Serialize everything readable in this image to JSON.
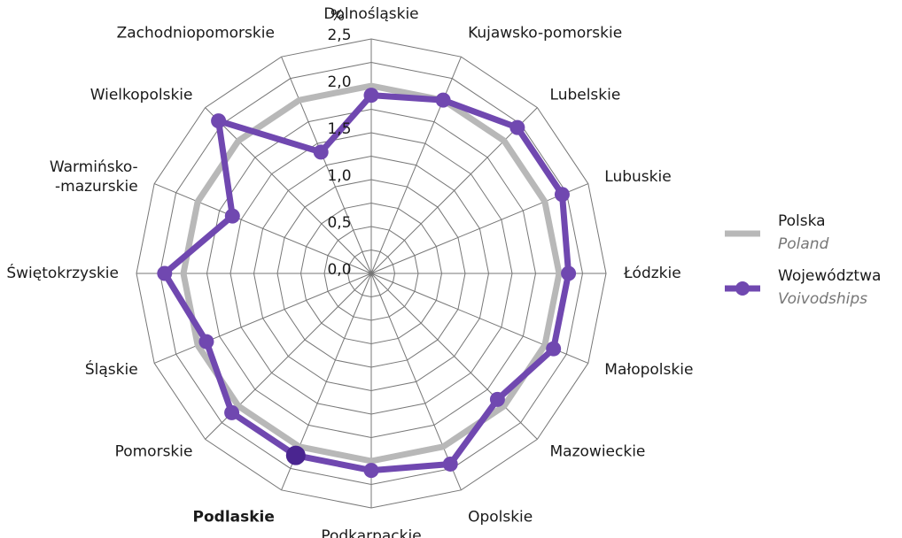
{
  "chart_data": {
    "type": "radar",
    "unit": "%",
    "categories": [
      "Dolnośląskie",
      "Kujawsko-pomorskie",
      "Lubelskie",
      "Lubuskie",
      "Łódzkie",
      "Małopolskie",
      "Mazowieckie",
      "Opolskie",
      "Podkarpackie",
      "Podlaskie",
      "Pomorskie",
      "Śląskie",
      "Świętokrzyskie",
      "Warmińsko-\n-mazurskie",
      "Wielkopolskie",
      "Zachodniopomorskie"
    ],
    "highlight": "Podlaskie",
    "highlight_color": "#4a2590",
    "ylim": [
      0,
      2.5
    ],
    "yticks": [
      {
        "value": 0,
        "label": "0,0"
      },
      {
        "value": 0.5,
        "label": "0,5"
      },
      {
        "value": 1,
        "label": "1,0"
      },
      {
        "value": 1.5,
        "label": "1,5"
      },
      {
        "value": 2,
        "label": "2,0"
      },
      {
        "value": 2.5,
        "label": "2,5"
      }
    ],
    "series": [
      {
        "name": "Polska",
        "name_en": "Poland",
        "color": "#b8b8b8",
        "markers": false,
        "values": [
          2.0,
          2.0,
          2.0,
          2.0,
          2.0,
          2.0,
          2.0,
          2.0,
          2.0,
          2.0,
          2.0,
          2.0,
          2.0,
          2.0,
          2.0,
          2.0
        ]
      },
      {
        "name": "Województwa",
        "name_en": "Voivodships",
        "color": "#7048b0",
        "markers": true,
        "values": [
          1.9,
          2.0,
          2.2,
          2.2,
          2.1,
          2.1,
          1.9,
          2.2,
          2.1,
          2.1,
          2.1,
          1.9,
          2.2,
          1.6,
          2.3,
          1.4
        ]
      }
    ]
  }
}
